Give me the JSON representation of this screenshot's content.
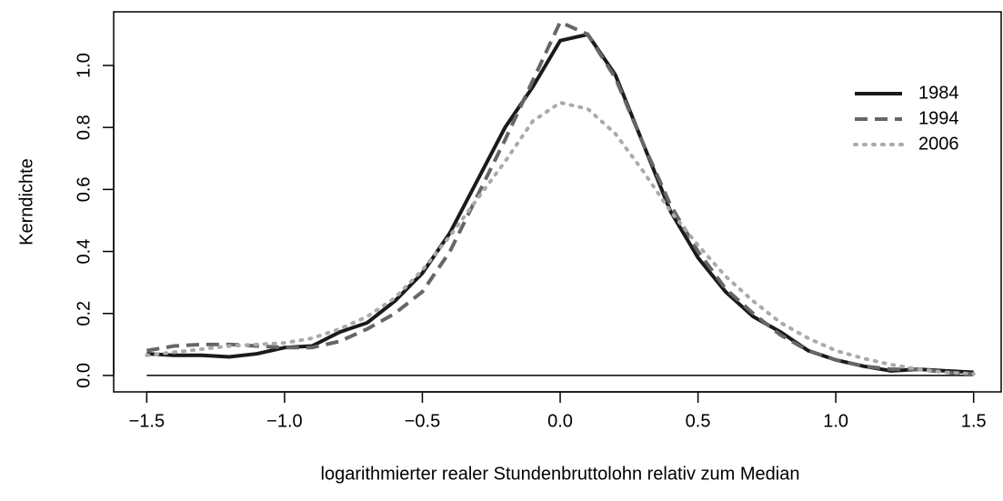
{
  "chart_data": {
    "type": "line",
    "x_label": "logarithmierter realer Stundenbruttolohn relativ zum Median",
    "y_label": "Kerndichte",
    "x": [
      -1.5,
      -1.4,
      -1.3,
      -1.2,
      -1.1,
      -1.0,
      -0.9,
      -0.8,
      -0.7,
      -0.6,
      -0.5,
      -0.4,
      -0.3,
      -0.2,
      -0.1,
      0.0,
      0.1,
      0.2,
      0.3,
      0.4,
      0.5,
      0.6,
      0.7,
      0.8,
      0.9,
      1.0,
      1.1,
      1.2,
      1.3,
      1.4,
      1.5
    ],
    "series": [
      {
        "name": "1984",
        "color": "#1a1a1a",
        "dash": "solid",
        "values": [
          0.07,
          0.065,
          0.065,
          0.06,
          0.07,
          0.09,
          0.095,
          0.14,
          0.17,
          0.24,
          0.33,
          0.46,
          0.63,
          0.8,
          0.93,
          1.08,
          1.1,
          0.97,
          0.75,
          0.53,
          0.38,
          0.27,
          0.19,
          0.14,
          0.08,
          0.05,
          0.03,
          0.015,
          0.02,
          0.015,
          0.01
        ]
      },
      {
        "name": "1994",
        "color": "#666666",
        "dash": "dashed",
        "values": [
          0.08,
          0.095,
          0.1,
          0.1,
          0.095,
          0.09,
          0.09,
          0.11,
          0.15,
          0.2,
          0.27,
          0.4,
          0.58,
          0.76,
          0.95,
          1.14,
          1.1,
          0.96,
          0.75,
          0.55,
          0.4,
          0.28,
          0.2,
          0.13,
          0.08,
          0.05,
          0.03,
          0.02,
          0.02,
          0.01,
          0.005
        ]
      },
      {
        "name": "2006",
        "color": "#aaaaaa",
        "dash": "dotted",
        "values": [
          0.065,
          0.075,
          0.085,
          0.095,
          0.1,
          0.105,
          0.12,
          0.15,
          0.19,
          0.25,
          0.34,
          0.45,
          0.57,
          0.69,
          0.82,
          0.88,
          0.86,
          0.78,
          0.66,
          0.53,
          0.42,
          0.32,
          0.24,
          0.17,
          0.12,
          0.08,
          0.055,
          0.035,
          0.02,
          0.01,
          0.005
        ]
      }
    ],
    "xlim": [
      -1.62,
      1.6
    ],
    "ylim": [
      -0.053,
      1.173
    ],
    "xticks": [
      {
        "value": -1.5,
        "label": "−1.5"
      },
      {
        "value": -1.0,
        "label": "−1.0"
      },
      {
        "value": -0.5,
        "label": "−0.5"
      },
      {
        "value": 0,
        "label": "0.0"
      },
      0.5,
      {
        "value": 1,
        "label": "1.0"
      },
      1.5
    ],
    "yticks": [
      {
        "value": 0,
        "label": "0.0"
      },
      0.2,
      0.4,
      0.6,
      0.8,
      {
        "value": 1,
        "label": "1.0"
      }
    ],
    "hline": 0,
    "legend": "topright"
  }
}
